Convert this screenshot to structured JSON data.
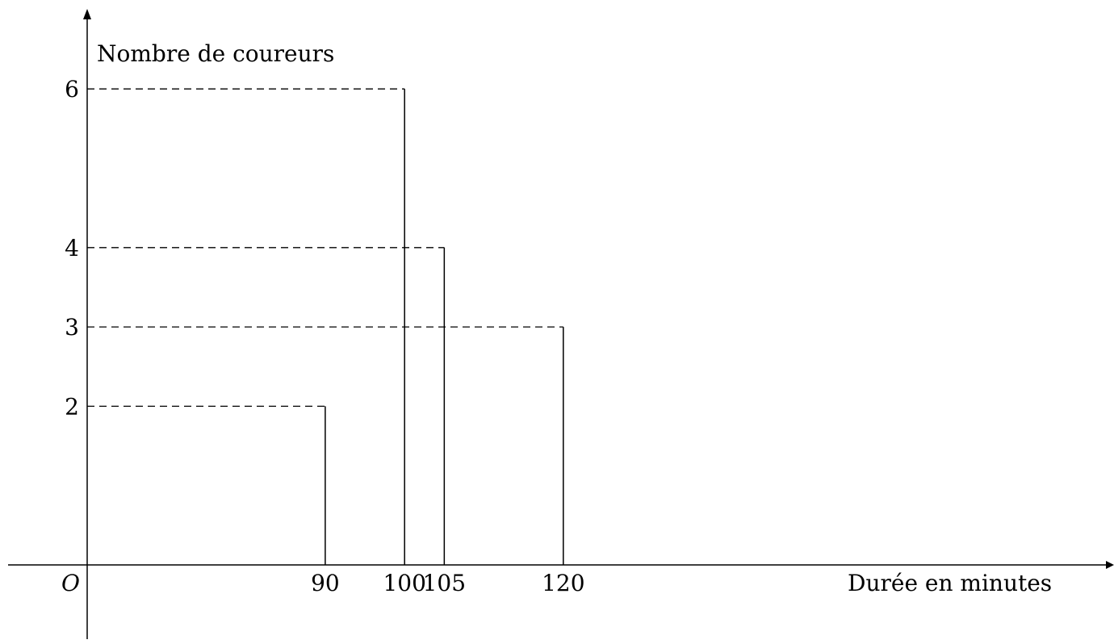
{
  "chart_data": {
    "type": "bar",
    "title": "",
    "ylabel": "Nombre de coureurs",
    "xlabel": "Durée en minutes",
    "origin_label": "O",
    "x": [
      90,
      100,
      105,
      120
    ],
    "values": [
      2,
      6,
      4,
      3
    ],
    "x_tick_labels": [
      "90",
      "100",
      "105",
      "120"
    ],
    "y_tick_labels": [
      "2",
      "3",
      "4",
      "6"
    ],
    "y_ticks": [
      2,
      3,
      4,
      6
    ],
    "xlim": [
      60,
      159
    ],
    "ylim": [
      -1,
      7
    ],
    "grid": false,
    "style": "vertical segments with dashed reference lines to the y-axis"
  }
}
